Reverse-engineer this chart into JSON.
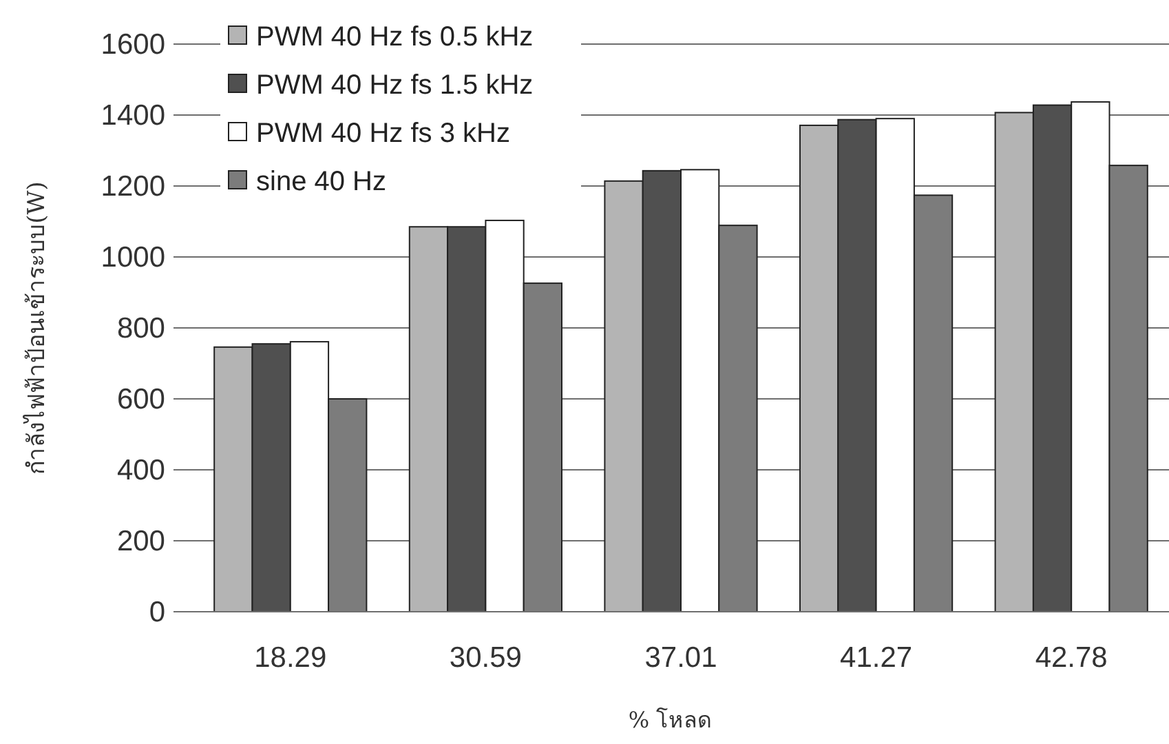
{
  "chart_data": {
    "type": "bar",
    "xlabel": "% โหลด",
    "ylabel": "กำลังไฟฟ้าป้อนเข้าระบบ(W)",
    "categories": [
      "18.29",
      "30.59",
      "37.01",
      "41.27",
      "42.78"
    ],
    "series": [
      {
        "name": "PWM 40 Hz fs 0.5 kHz",
        "color": "#b4b4b4",
        "values": [
          746,
          1085,
          1214,
          1371,
          1407
        ]
      },
      {
        "name": "PWM 40 Hz fs 1.5 kHz",
        "color": "#505050",
        "values": [
          755,
          1085,
          1243,
          1387,
          1428
        ]
      },
      {
        "name": "PWM 40 Hz fs 3 kHz",
        "color": "#ffffff",
        "values": [
          761,
          1103,
          1246,
          1390,
          1437
        ]
      },
      {
        "name": "sine 40 Hz",
        "color": "#7c7c7c",
        "values": [
          600,
          926,
          1089,
          1174,
          1258
        ]
      }
    ],
    "ylim": [
      0,
      1600
    ],
    "yticks": [
      0,
      200,
      400,
      600,
      800,
      1000,
      1200,
      1400,
      1600
    ],
    "grid": "y",
    "legend": "top left"
  }
}
